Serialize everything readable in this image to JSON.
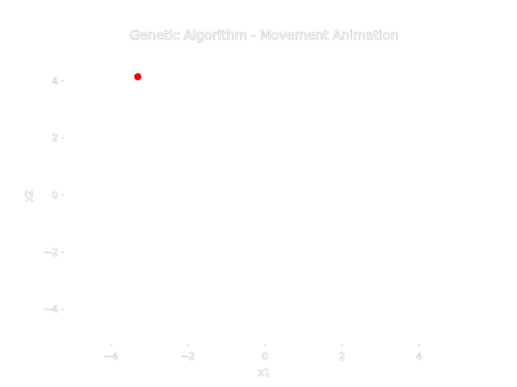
{
  "chart_data": {
    "type": "scatter",
    "title": "Genetic Algorithm - Movement Animation",
    "xlabel": "x1",
    "ylabel": "x2",
    "xlim": [
      -5.2,
      5.2
    ],
    "ylim": [
      -5.2,
      5.2
    ],
    "xticks": [
      -4,
      -2,
      0,
      2,
      4
    ],
    "yticks": [
      4,
      2,
      0,
      -2,
      -4
    ],
    "xtick_labels": [
      "−4",
      "−2",
      "0",
      "2",
      "4"
    ],
    "ytick_labels": [
      "4",
      "2",
      "0",
      "−2",
      "−4"
    ],
    "grid": false,
    "series": [
      {
        "points": [
          {
            "x": -3.3,
            "y": 4.15
          }
        ],
        "color": "#ff0000"
      }
    ]
  }
}
